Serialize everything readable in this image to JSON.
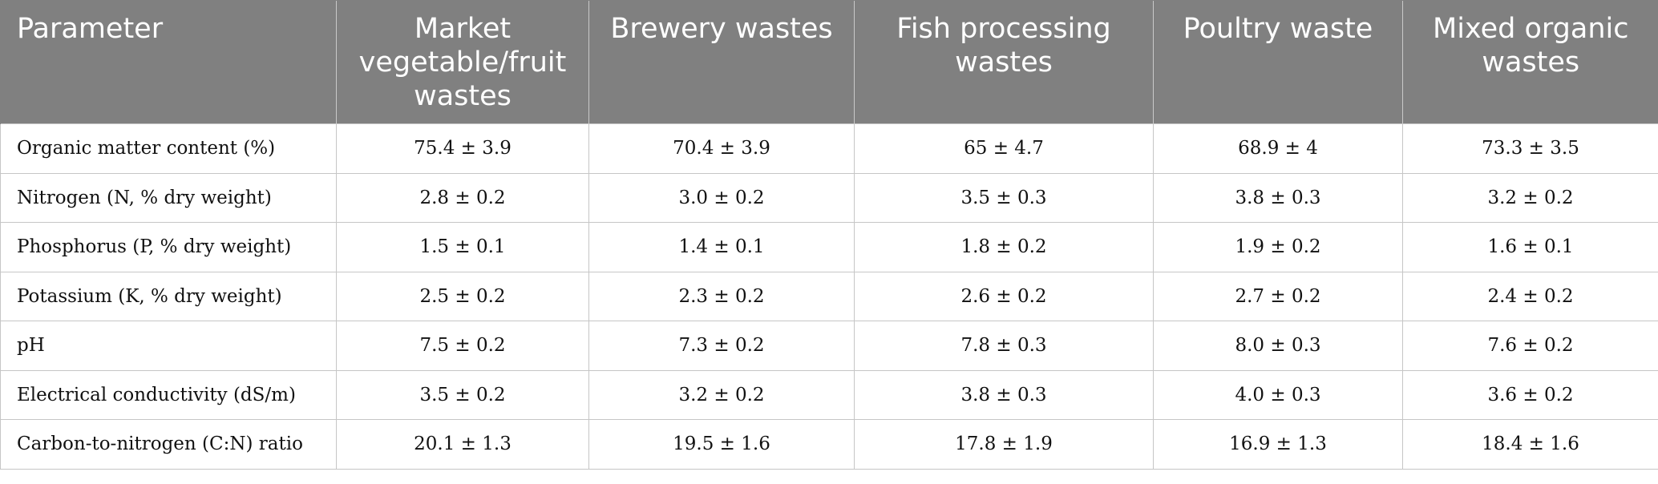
{
  "table": {
    "headers": [
      "Parameter",
      "Market vegetable/fruit wastes",
      "Brewery wastes",
      "Fish processing wastes",
      "Poultry waste",
      "Mixed organic wastes"
    ],
    "rows": [
      [
        "Organic matter content (%)",
        "75.4 ± 3.9",
        "70.4 ± 3.9",
        "65 ± 4.7",
        "68.9 ± 4",
        "73.3 ± 3.5"
      ],
      [
        "Nitrogen (N, % dry weight)",
        "2.8 ± 0.2",
        "3.0 ± 0.2",
        "3.5 ± 0.3",
        "3.8 ± 0.3",
        "3.2 ± 0.2"
      ],
      [
        "Phosphorus (P, % dry weight)",
        "1.5 ± 0.1",
        "1.4 ± 0.1",
        "1.8 ± 0.2",
        "1.9 ± 0.2",
        "1.6 ± 0.1"
      ],
      [
        "Potassium (K, % dry weight)",
        "2.5 ± 0.2",
        "2.3 ± 0.2",
        "2.6 ± 0.2",
        "2.7 ± 0.2",
        "2.4 ± 0.2"
      ],
      [
        "pH",
        "7.5 ± 0.2",
        "7.3 ± 0.2",
        "7.8 ± 0.3",
        "8.0 ± 0.3",
        "7.6 ± 0.2"
      ],
      [
        "Electrical conductivity (dS/m)",
        "3.5 ± 0.2",
        "3.2 ± 0.2",
        "3.8 ± 0.3",
        "4.0 ± 0.3",
        "3.6 ± 0.2"
      ],
      [
        "Carbon-to-nitrogen (C:N) ratio",
        "20.1 ± 1.3",
        "19.5 ± 1.6",
        "17.8 ± 1.9",
        "16.9 ± 1.3",
        "18.4 ± 1.6"
      ]
    ]
  },
  "colors": {
    "header_background": "#808080",
    "header_text": "#ffffff",
    "grid_line": "#c6c6c6",
    "body_text": "#111111"
  }
}
